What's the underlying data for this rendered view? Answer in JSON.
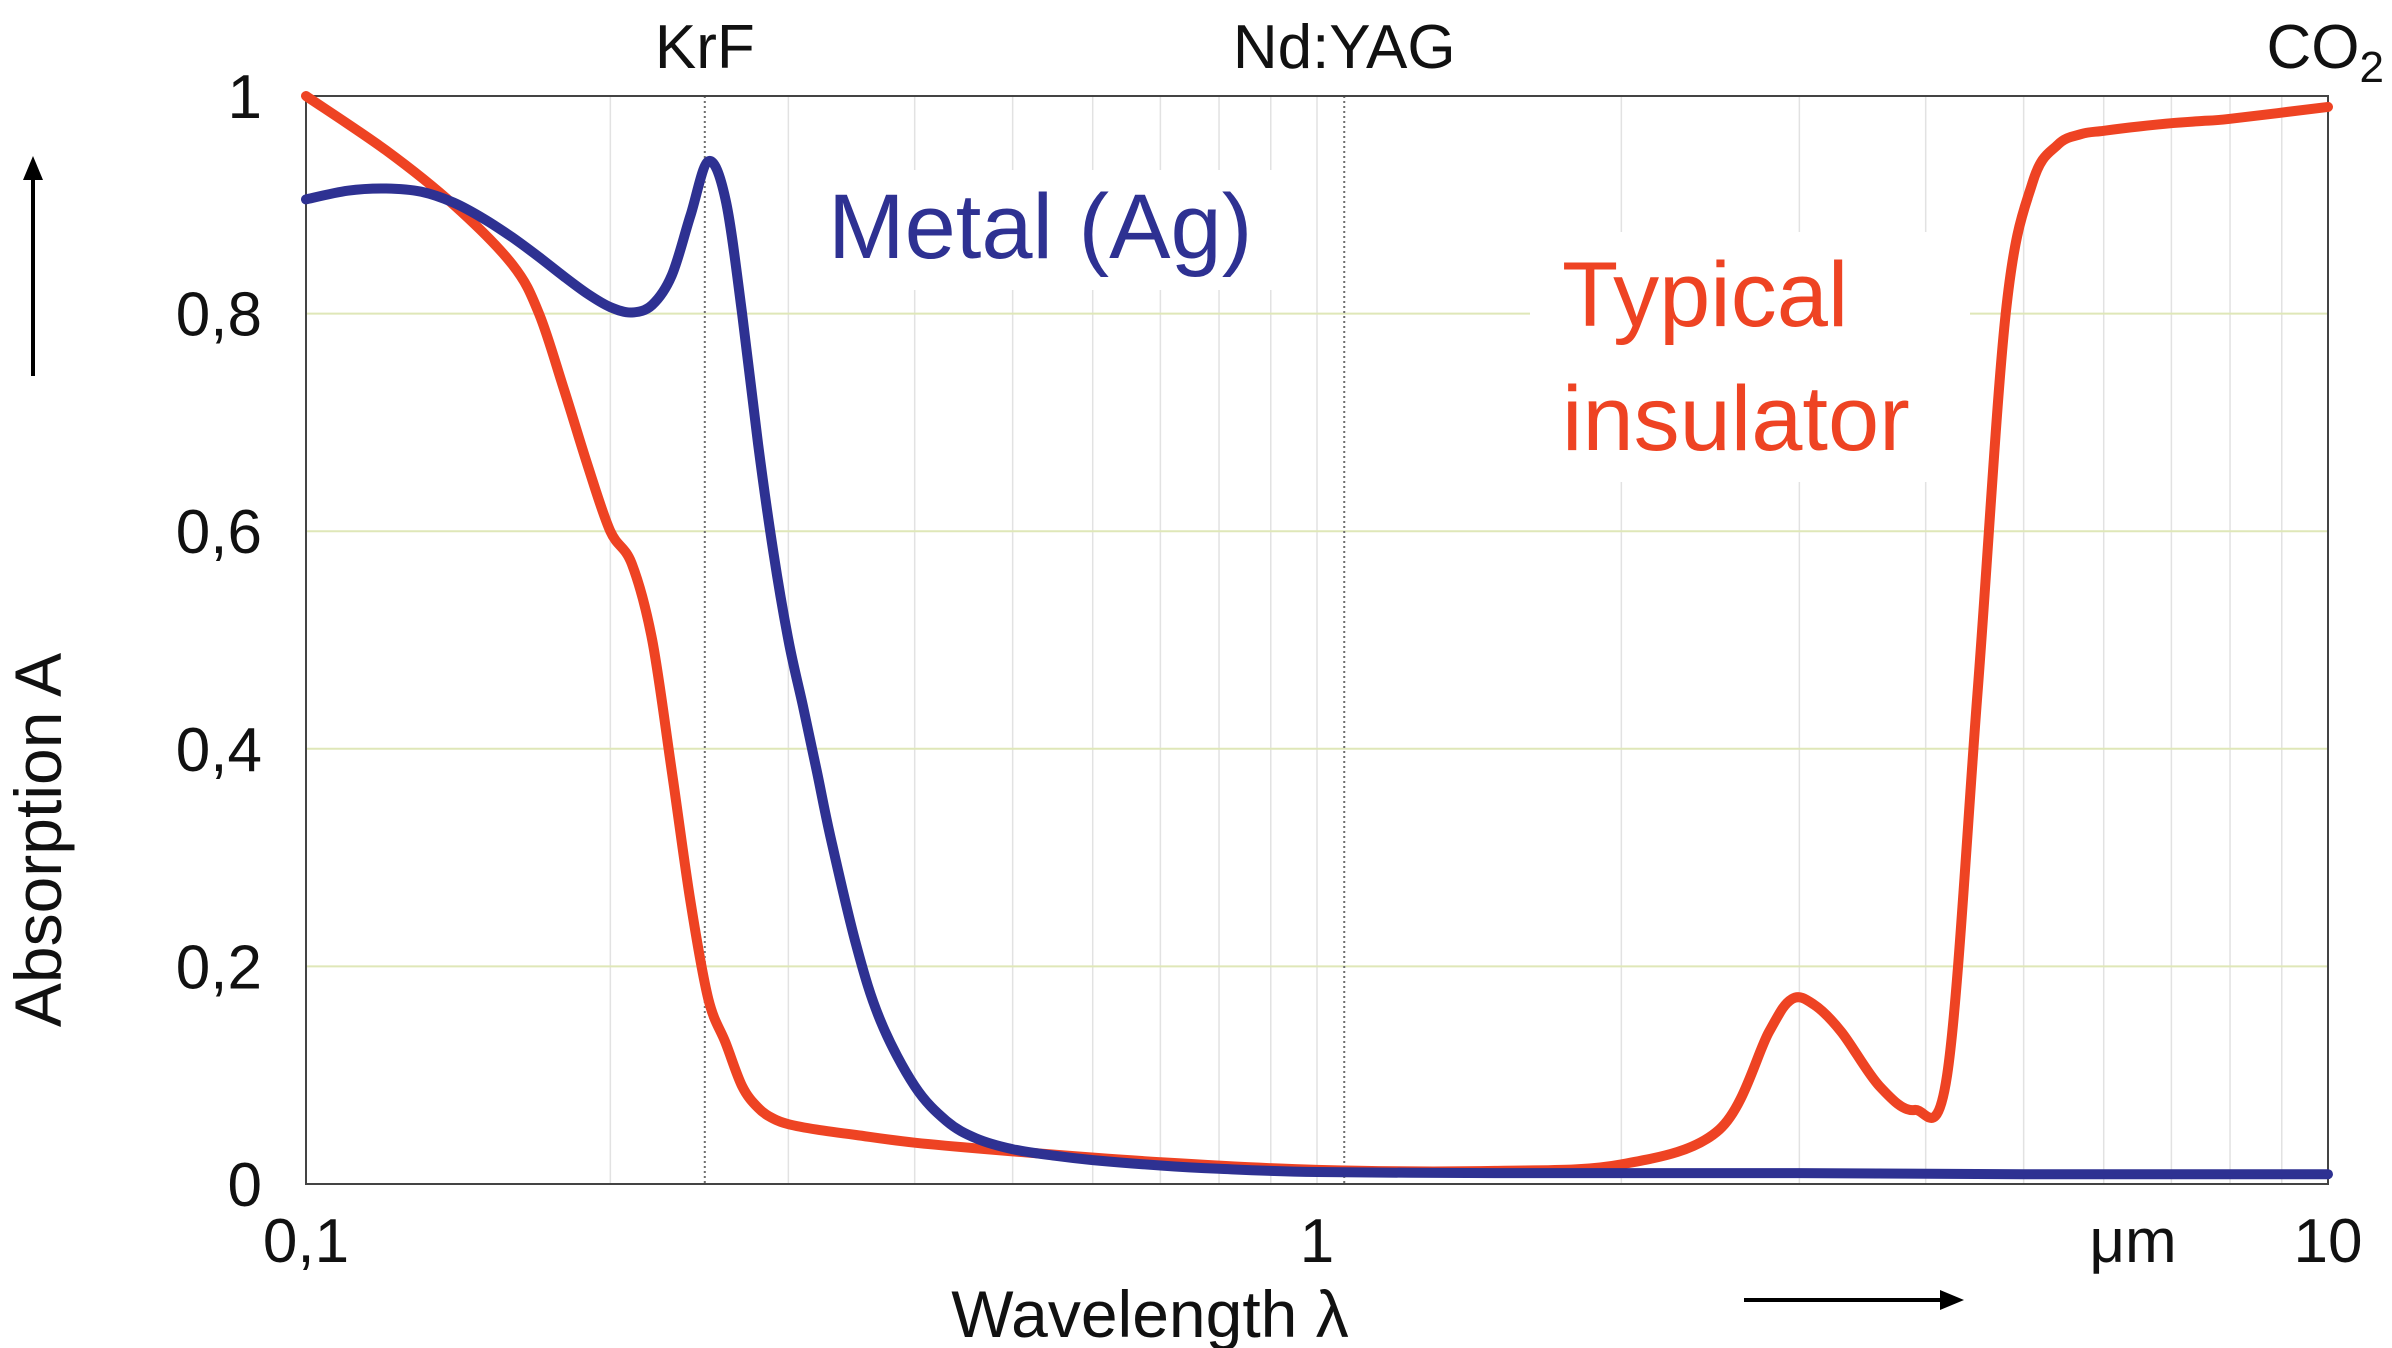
{
  "chart_data": {
    "type": "line",
    "xlabel": "Wavelength λ",
    "ylabel": "Absorption A",
    "x_unit": "μm",
    "x_scale": "log",
    "xlim": [
      0.1,
      10
    ],
    "ylim": [
      0,
      1
    ],
    "x_ticks": [
      {
        "value": 0.1,
        "label": "0,1"
      },
      {
        "value": 1,
        "label": "1"
      },
      {
        "value": 10,
        "label": "10"
      }
    ],
    "y_ticks": [
      {
        "value": 0,
        "label": "0"
      },
      {
        "value": 0.2,
        "label": "0,2"
      },
      {
        "value": 0.4,
        "label": "0,4"
      },
      {
        "value": 0.6,
        "label": "0,6"
      },
      {
        "value": 0.8,
        "label": "0,8"
      },
      {
        "value": 1,
        "label": "1"
      }
    ],
    "grid": true,
    "laser_markers": [
      {
        "name": "KrF",
        "x": 0.248
      },
      {
        "name": "Nd:YAG",
        "x": 1.064
      },
      {
        "name": "CO",
        "subscript": "2",
        "x": 10.6
      }
    ],
    "series": [
      {
        "name": "Metal (Ag)",
        "color": "#2e3192",
        "x": [
          0.1,
          0.11,
          0.12,
          0.13,
          0.14,
          0.15,
          0.16,
          0.17,
          0.18,
          0.19,
          0.2,
          0.21,
          0.22,
          0.23,
          0.24,
          0.25,
          0.26,
          0.27,
          0.28,
          0.29,
          0.3,
          0.31,
          0.32,
          0.33,
          0.35,
          0.37,
          0.4,
          0.43,
          0.46,
          0.5,
          0.55,
          0.6,
          0.7,
          0.8,
          1,
          1.5,
          2,
          3,
          5,
          7,
          10
        ],
        "y": [
          0.905,
          0.913,
          0.915,
          0.912,
          0.902,
          0.887,
          0.87,
          0.852,
          0.834,
          0.818,
          0.806,
          0.801,
          0.808,
          0.835,
          0.89,
          0.94,
          0.905,
          0.8,
          0.68,
          0.58,
          0.5,
          0.44,
          0.38,
          0.32,
          0.22,
          0.15,
          0.09,
          0.058,
          0.042,
          0.032,
          0.026,
          0.022,
          0.017,
          0.014,
          0.011,
          0.01,
          0.01,
          0.01,
          0.009,
          0.009,
          0.009
        ]
      },
      {
        "name": "Typical insulator",
        "color": "#ee4323",
        "x": [
          0.1,
          0.12,
          0.14,
          0.16,
          0.17,
          0.18,
          0.19,
          0.2,
          0.21,
          0.22,
          0.23,
          0.24,
          0.25,
          0.26,
          0.27,
          0.28,
          0.29,
          0.3,
          0.32,
          0.35,
          0.4,
          0.5,
          0.7,
          1,
          1.5,
          2,
          2.5,
          2.8,
          2.95,
          3.1,
          3.3,
          3.6,
          3.9,
          4.2,
          4.5,
          4.8,
          5.1,
          5.4,
          5.7,
          6,
          6.5,
          7,
          7.5,
          8,
          10
        ],
        "y": [
          1,
          0.95,
          0.9,
          0.845,
          0.8,
          0.73,
          0.66,
          0.6,
          0.57,
          0.5,
          0.38,
          0.26,
          0.17,
          0.13,
          0.09,
          0.07,
          0.06,
          0.055,
          0.05,
          0.045,
          0.038,
          0.03,
          0.02,
          0.013,
          0.012,
          0.018,
          0.05,
          0.14,
          0.17,
          0.165,
          0.14,
          0.09,
          0.068,
          0.1,
          0.45,
          0.8,
          0.92,
          0.955,
          0.965,
          0.968,
          0.972,
          0.975,
          0.977,
          0.979,
          0.99
        ]
      }
    ],
    "annotations": [
      {
        "text": "Metal (Ag)",
        "series": 0
      },
      {
        "text": "Typical insulator",
        "series": 1
      }
    ]
  }
}
